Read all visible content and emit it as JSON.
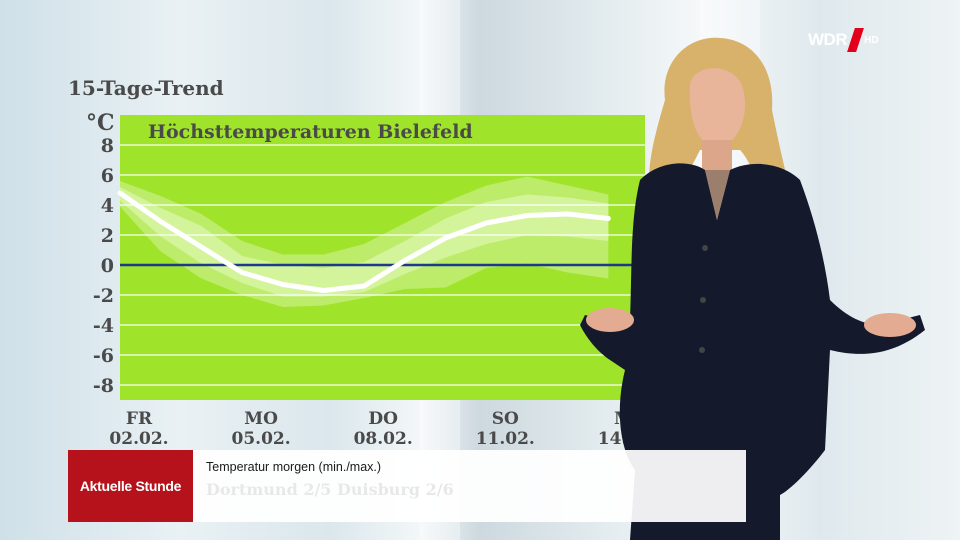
{
  "header": {
    "trend_title": "15-Tage-Trend",
    "unit": "°C"
  },
  "branding": {
    "logo": "WDR",
    "hd": "HD",
    "logo_accent": "#e3001b"
  },
  "lower_third": {
    "show": "Aktuelle Stunde",
    "line1": "Temperatur morgen (min./max.)",
    "line2": "Dortmund 2/5   Duisburg 2/6"
  },
  "colors": {
    "chart_bg": "#9fe32a",
    "band_outer": "#bdec6a",
    "band_inner": "#d3f49b",
    "line": "#ffffff",
    "zero_line": "#1b3a8c"
  },
  "chart_data": {
    "type": "line",
    "title": "Höchsttemperaturen Bielefeld",
    "ylabel": "°C",
    "ylim": [
      -9,
      10
    ],
    "yticks": [
      8,
      6,
      4,
      2,
      0,
      -2,
      -4,
      -6,
      -8
    ],
    "x_tick_labels": [
      {
        "day": "FR",
        "date": "02.02.",
        "x": 0
      },
      {
        "day": "MO",
        "date": "05.02.",
        "x": 3
      },
      {
        "day": "DO",
        "date": "08.02.",
        "x": 6
      },
      {
        "day": "SO",
        "date": "11.02.",
        "x": 9
      },
      {
        "day": "MI",
        "date": "14.02.",
        "x": 12
      }
    ],
    "xlim": [
      0,
      12.9
    ],
    "series": [
      {
        "values": [
          4.8,
          2.9,
          1.2,
          -0.5,
          -1.3,
          -1.7,
          -1.4,
          0.3,
          1.8,
          2.8,
          3.3,
          3.4,
          3.1
        ]
      }
    ],
    "band_outer_upper": [
      5.6,
      4.6,
      3.4,
      1.6,
      0.7,
      0.7,
      1.4,
      2.8,
      4.2,
      5.3,
      5.9,
      5.3,
      4.7
    ],
    "band_outer_lower": [
      3.9,
      0.9,
      -0.9,
      -2.0,
      -2.8,
      -2.7,
      -2.2,
      -1.6,
      -1.5,
      -0.2,
      0.1,
      -0.5,
      -0.9
    ],
    "band_inner_upper": [
      5.2,
      3.8,
      2.6,
      0.6,
      0.0,
      -0.2,
      0.2,
      1.6,
      3.1,
      4.2,
      4.7,
      4.5,
      4.1
    ],
    "band_inner_lower": [
      4.3,
      1.9,
      0.1,
      -1.2,
      -2.1,
      -2.1,
      -1.8,
      -0.6,
      0.5,
      1.4,
      2.0,
      1.9,
      1.6
    ]
  }
}
